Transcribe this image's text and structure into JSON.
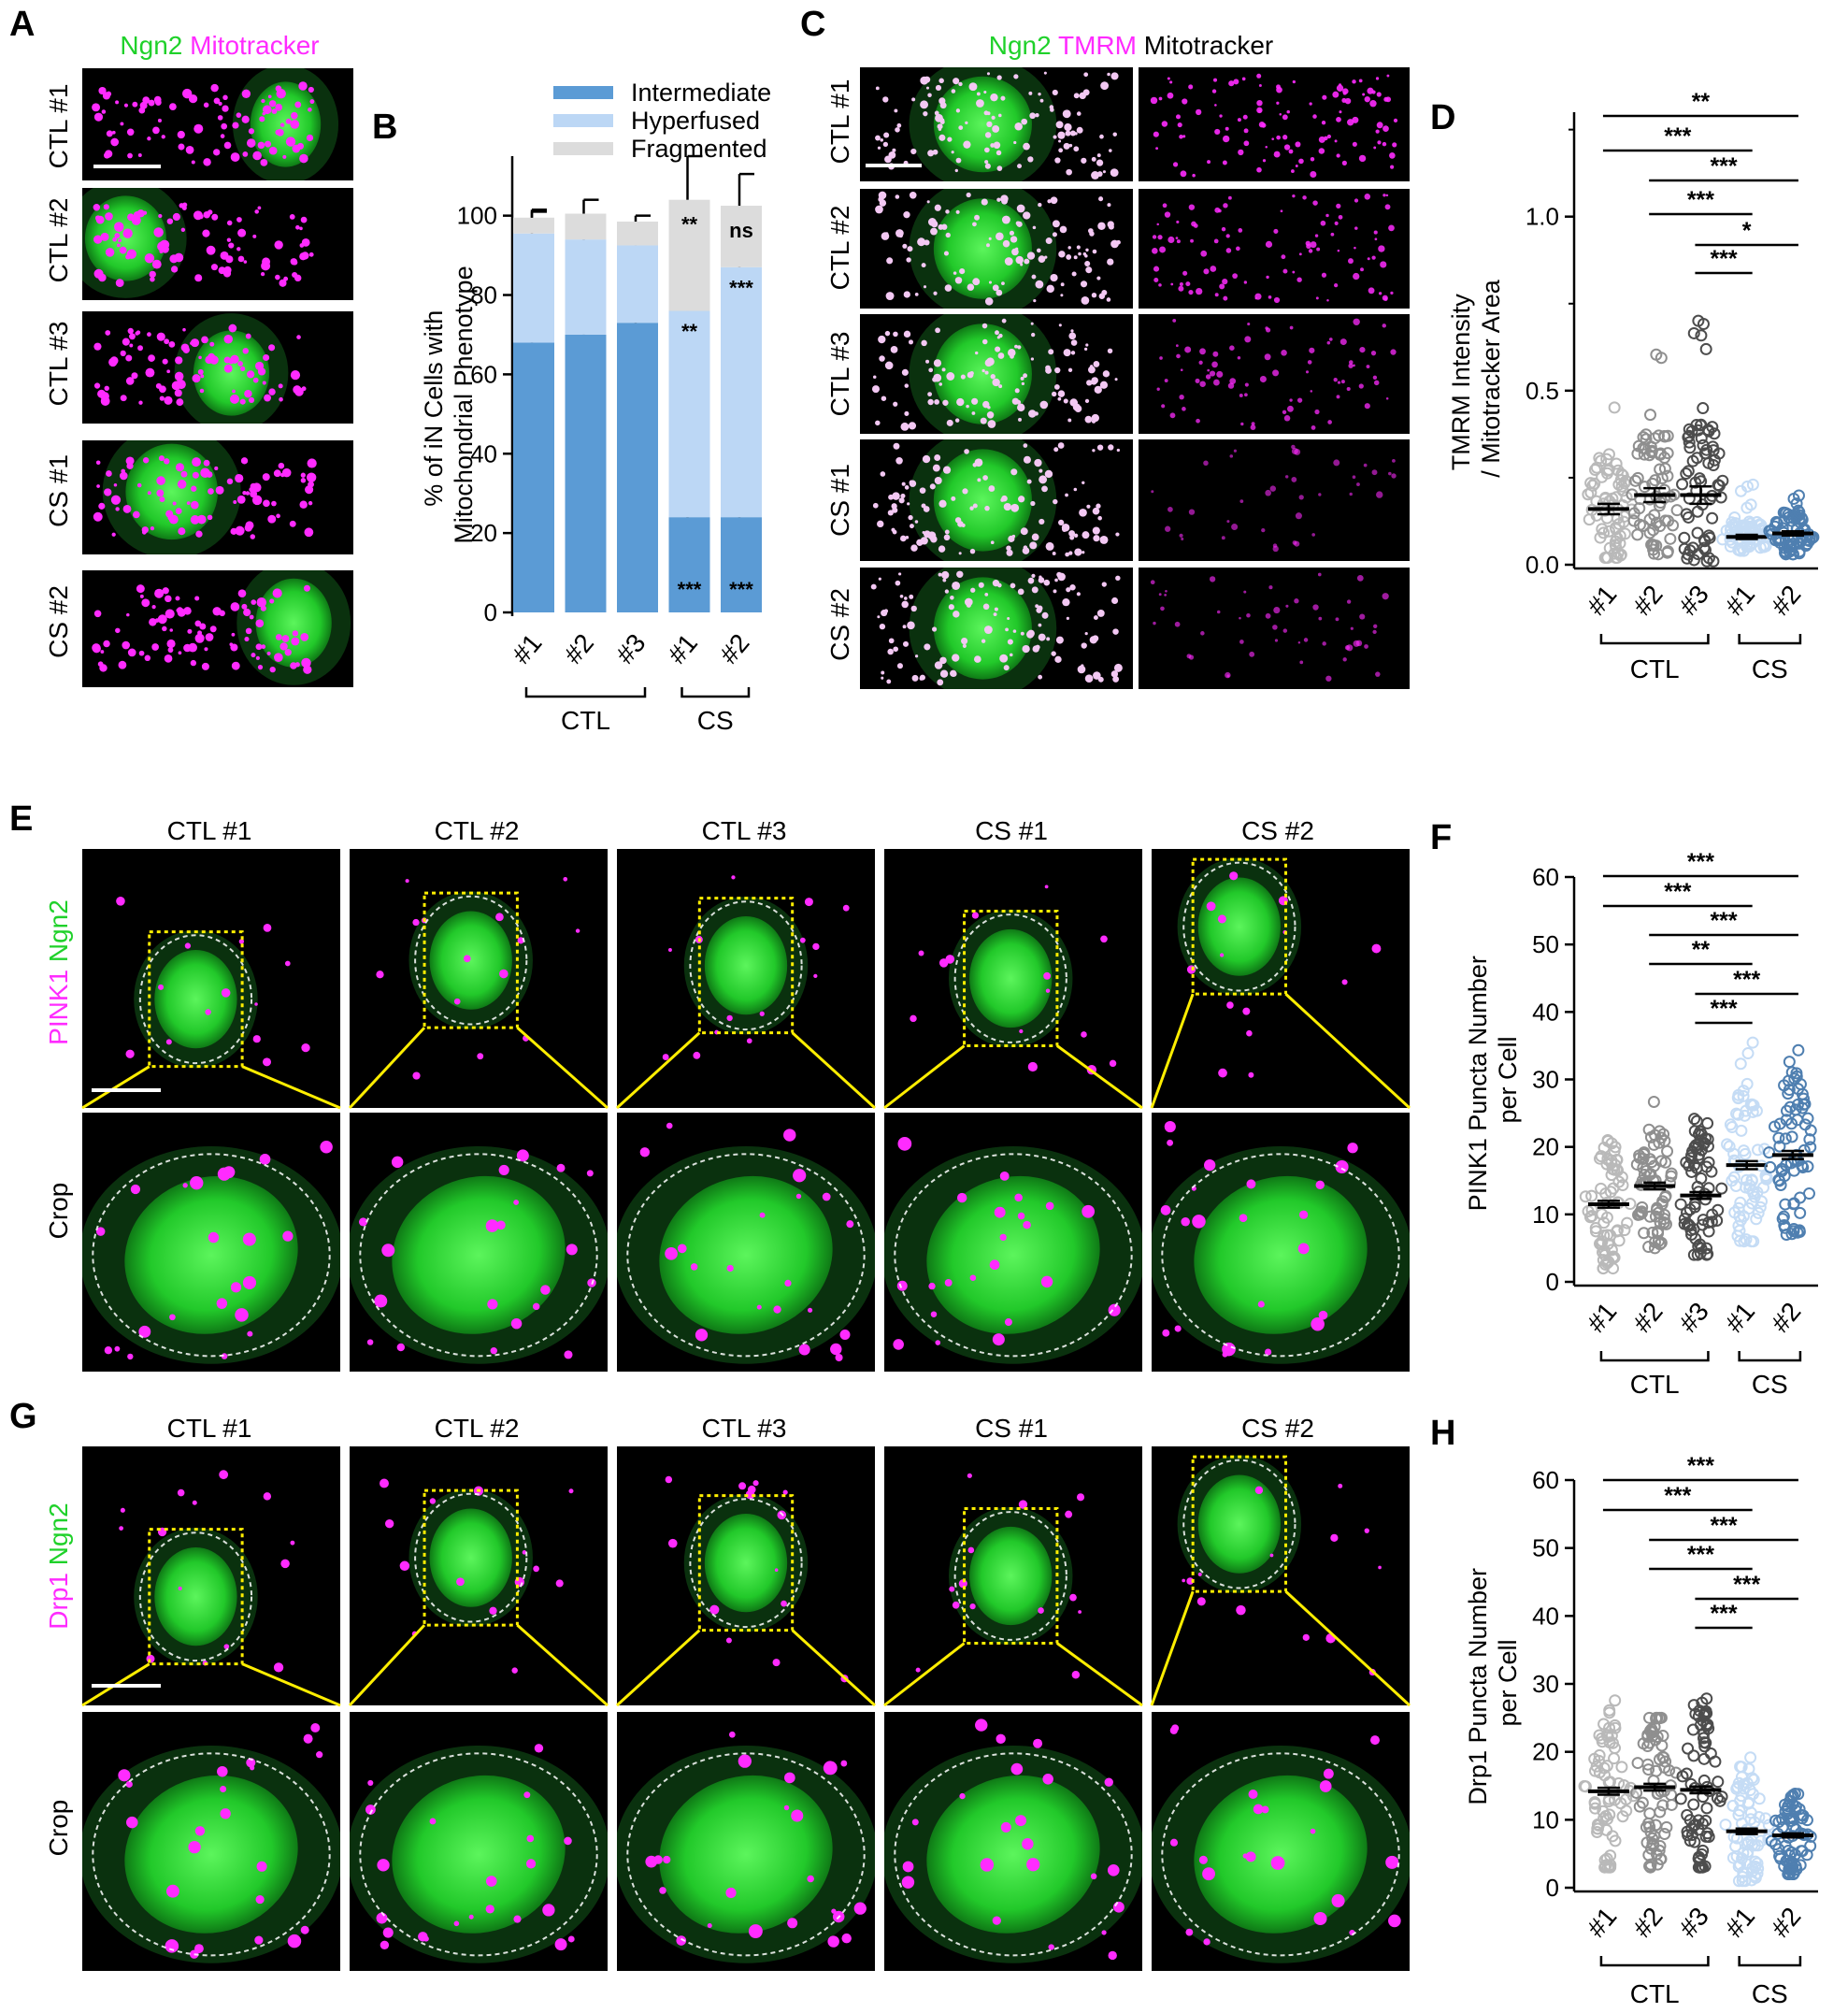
{
  "colors": {
    "green": "#1fd12a",
    "magenta": "#ff2bff",
    "intermediate": "#5b9bd5",
    "hyperfused": "#bcd7f5",
    "fragmented": "#dcdcdc",
    "ctl1": "#b9b9b9",
    "ctl2": "#8f8f8f",
    "ctl3": "#4d4d4d",
    "cs1": "#c5dcf5",
    "cs2": "#4f7fb0",
    "crop_box": "#ffee00"
  },
  "panelA": {
    "letter": "A",
    "legend": [
      "Ngn2",
      "Mitotracker"
    ],
    "rows": [
      "CTL #1",
      "CTL #2",
      "CTL #3",
      "CS #1",
      "CS #2"
    ]
  },
  "panelB": {
    "letter": "B",
    "ylabel_lines": [
      "% of iN Cells with",
      "Mitochondrial Phenotype"
    ],
    "groups": [
      "CTL",
      "CS"
    ]
  },
  "panelC": {
    "letter": "C",
    "legend": [
      "Ngn2",
      "TMRM",
      "Mitotracker"
    ],
    "rows": [
      "CTL #1",
      "CTL #2",
      "CTL #3",
      "CS #1",
      "CS #2"
    ]
  },
  "panelD": {
    "letter": "D",
    "ylabel_lines": [
      "TMRM Intensity",
      "/ Mitotracker Area"
    ],
    "groups": [
      "CTL",
      "CS"
    ]
  },
  "panelE": {
    "letter": "E",
    "side_labels": [
      "PINK1",
      "Ngn2"
    ],
    "crop_label": "Crop",
    "columns": [
      "CTL #1",
      "CTL #2",
      "CTL #3",
      "CS #1",
      "CS #2"
    ]
  },
  "panelF": {
    "letter": "F",
    "ylabel_lines": [
      "PINK1 Puncta Number",
      "per Cell"
    ],
    "groups": [
      "CTL",
      "CS"
    ]
  },
  "panelG": {
    "letter": "G",
    "side_labels": [
      "Drp1",
      "Ngn2"
    ],
    "crop_label": "Crop",
    "columns": [
      "CTL #1",
      "CTL #2",
      "CTL #3",
      "CS #1",
      "CS #2"
    ]
  },
  "panelH": {
    "letter": "H",
    "ylabel_lines": [
      "Drp1 Puncta Number",
      "per Cell"
    ],
    "groups": [
      "CTL",
      "CS"
    ]
  },
  "chart_data": [
    {
      "panel": "B",
      "type": "bar",
      "stacked": true,
      "categories": [
        "#1",
        "#2",
        "#3",
        "#1",
        "#2"
      ],
      "series": [
        {
          "name": "Intermediate",
          "values": [
            68,
            70,
            73,
            24,
            24
          ],
          "errors": [
            4,
            2.5,
            3,
            5,
            4
          ],
          "sig": [
            "",
            "",
            "",
            "***",
            "***"
          ]
        },
        {
          "name": "Hyperfused",
          "values": [
            27.5,
            24,
            19.5,
            52,
            63
          ],
          "errors": [
            5.5,
            3.5,
            3.5,
            4,
            7
          ],
          "sig": [
            "",
            "",
            "",
            "**",
            "***"
          ]
        },
        {
          "name": "Fragmented",
          "values": [
            4,
            6.5,
            6,
            28,
            15.5
          ],
          "errors": [
            2,
            3.5,
            1.5,
            11,
            8
          ],
          "sig": [
            "",
            "",
            "",
            "**",
            "ns"
          ]
        }
      ],
      "ylim": [
        0,
        115
      ],
      "yticks": [
        0,
        20,
        40,
        60,
        80,
        100
      ]
    },
    {
      "panel": "D",
      "type": "scatter",
      "categories": [
        "#1",
        "#2",
        "#3",
        "#1",
        "#2"
      ],
      "means": [
        0.16,
        0.2,
        0.2,
        0.08,
        0.09
      ],
      "sem": [
        0.015,
        0.02,
        0.025,
        0.006,
        0.006
      ],
      "ranges": [
        [
          0.02,
          0.49
        ],
        [
          0.03,
          0.7
        ],
        [
          0.01,
          0.78
        ],
        [
          0.04,
          0.24
        ],
        [
          0.03,
          0.2
        ]
      ],
      "ylim": [
        0,
        1.3
      ],
      "yticks": [
        0.0,
        0.5,
        1.0
      ],
      "tick_labels": [
        "0.0",
        "0.5",
        "1.0"
      ],
      "comparisons": [
        {
          "from": 0,
          "to": 4,
          "label": "**"
        },
        {
          "from": 0,
          "to": 3,
          "label": "***"
        },
        {
          "from": 1,
          "to": 4,
          "label": "***"
        },
        {
          "from": 1,
          "to": 3,
          "label": "***"
        },
        {
          "from": 2,
          "to": 4,
          "label": "*"
        },
        {
          "from": 2,
          "to": 3,
          "label": "***"
        }
      ]
    },
    {
      "panel": "F",
      "type": "scatter",
      "categories": [
        "#1",
        "#2",
        "#3",
        "#1",
        "#2"
      ],
      "means": [
        11.5,
        14.2,
        12.8,
        17.3,
        18.8
      ],
      "sem": [
        0.5,
        0.5,
        0.5,
        0.6,
        0.6
      ],
      "ranges": [
        [
          2,
          21
        ],
        [
          5,
          30
        ],
        [
          4,
          26
        ],
        [
          6,
          36
        ],
        [
          7,
          36
        ]
      ],
      "ylim": [
        0,
        60
      ],
      "yticks": [
        0,
        10,
        20,
        30,
        40,
        50,
        60
      ],
      "comparisons": [
        {
          "from": 0,
          "to": 4,
          "label": "***"
        },
        {
          "from": 0,
          "to": 3,
          "label": "***"
        },
        {
          "from": 1,
          "to": 4,
          "label": "***"
        },
        {
          "from": 1,
          "to": 3,
          "label": "**"
        },
        {
          "from": 2,
          "to": 4,
          "label": "***"
        },
        {
          "from": 2,
          "to": 3,
          "label": "***"
        }
      ]
    },
    {
      "panel": "H",
      "type": "scatter",
      "categories": [
        "#1",
        "#2",
        "#3",
        "#1",
        "#2"
      ],
      "means": [
        14.2,
        14.8,
        14.4,
        8.3,
        7.7
      ],
      "sem": [
        0.5,
        0.5,
        0.5,
        0.4,
        0.3
      ],
      "ranges": [
        [
          3,
          28
        ],
        [
          3,
          25
        ],
        [
          3,
          28
        ],
        [
          1,
          21
        ],
        [
          2,
          15
        ]
      ],
      "ylim": [
        0,
        60
      ],
      "yticks": [
        0,
        10,
        20,
        30,
        40,
        50,
        60
      ],
      "comparisons": [
        {
          "from": 0,
          "to": 4,
          "label": "***"
        },
        {
          "from": 0,
          "to": 3,
          "label": "***"
        },
        {
          "from": 1,
          "to": 4,
          "label": "***"
        },
        {
          "from": 1,
          "to": 3,
          "label": "***"
        },
        {
          "from": 2,
          "to": 4,
          "label": "***"
        },
        {
          "from": 2,
          "to": 3,
          "label": "***"
        }
      ]
    }
  ]
}
